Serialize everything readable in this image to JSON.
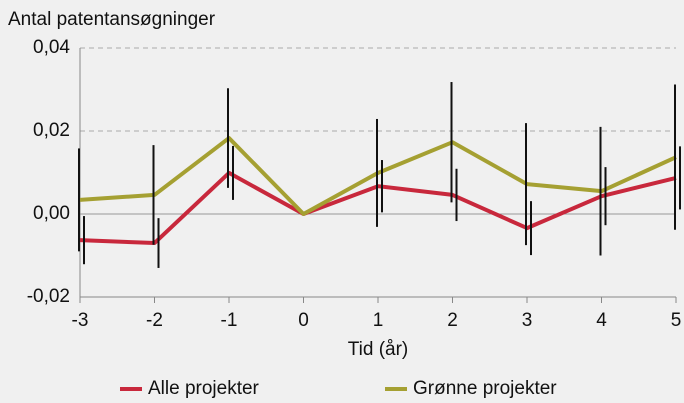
{
  "chart_data": {
    "type": "line",
    "ylabel": "Antal patentansøgninger",
    "xlabel": "Tid (år)",
    "x": [
      -3,
      -2,
      -1,
      0,
      1,
      2,
      3,
      4,
      5
    ],
    "xlim": [
      -3,
      5
    ],
    "xticks": [
      -3,
      -2,
      -1,
      0,
      1,
      2,
      3,
      4,
      5
    ],
    "ylim": [
      -0.02,
      0.04
    ],
    "yticks": [
      {
        "value": -0.02,
        "label": "-0,02"
      },
      {
        "value": 0,
        "label": "0,00"
      },
      {
        "value": 0.02,
        "label": "0,02"
      },
      {
        "value": 0.04,
        "label": "0,04"
      }
    ],
    "grid": true,
    "legend": "bottom",
    "series": [
      {
        "name": "Alle projekter",
        "color": "#c8283c",
        "values": [
          -0.0063,
          -0.007,
          0.0099,
          0,
          0.0067,
          0.0046,
          -0.0034,
          0.0043,
          0.0087
        ],
        "errors": [
          0.0058,
          0.006,
          0.0065,
          0,
          0.0063,
          0.0063,
          0.0065,
          0.007,
          0.0076
        ]
      },
      {
        "name": "Grønne projekter",
        "color": "#a5a032",
        "values": [
          0.0034,
          0.0046,
          0.0183,
          0,
          0.0099,
          0.0173,
          0.0072,
          0.0055,
          0.0137
        ],
        "errors": [
          0.0124,
          0.012,
          0.012,
          0,
          0.013,
          0.0145,
          0.0147,
          0.0155,
          0.0175
        ]
      }
    ]
  }
}
